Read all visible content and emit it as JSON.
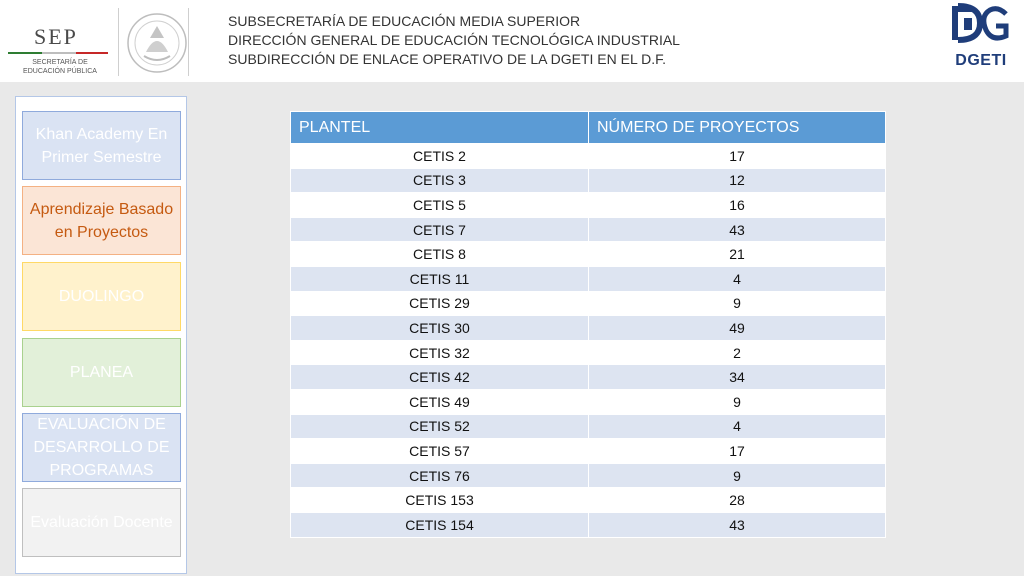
{
  "header": {
    "sep_logo": {
      "name": "SEP",
      "subtitle_line1": "SECRETARÍA DE",
      "subtitle_line2": "EDUCACIÓN PÚBLICA"
    },
    "lines": [
      "SUBSECRETARÍA DE EDUCACIÓN MEDIA SUPERIOR",
      "DIRECCIÓN GENERAL DE EDUCACIÓN TECNOLÓGICA INDUSTRIAL",
      "SUBDIRECCIÓN DE ENLACE OPERATIVO DE LA DGETI EN EL D.F."
    ],
    "dgeti_logo": {
      "text": "DGETI"
    }
  },
  "sidebar": {
    "items": [
      {
        "label": "Khan Academy En Primer Semestre"
      },
      {
        "label": "Aprendizaje Basado en Proyectos"
      },
      {
        "label": "DUOLINGO"
      },
      {
        "label": "PLANEA"
      },
      {
        "label": "EVALUACIÓN DE DESARROLLO DE PROGRAMAS"
      },
      {
        "label": "Evaluación Docente"
      }
    ]
  },
  "table": {
    "headers": [
      "PLANTEL",
      "NÚMERO DE PROYECTOS"
    ],
    "rows": [
      [
        "CETIS 2",
        "17"
      ],
      [
        "CETIS 3",
        "12"
      ],
      [
        "CETIS 5",
        "16"
      ],
      [
        "CETIS 7",
        "43"
      ],
      [
        "CETIS 8",
        "21"
      ],
      [
        "CETIS 11",
        "4"
      ],
      [
        "CETIS 29",
        "9"
      ],
      [
        "CETIS 30",
        "49"
      ],
      [
        "CETIS 32",
        "2"
      ],
      [
        "CETIS 42",
        "34"
      ],
      [
        "CETIS 49",
        "9"
      ],
      [
        "CETIS 52",
        "4"
      ],
      [
        "CETIS 57",
        "17"
      ],
      [
        "CETIS 76",
        "9"
      ],
      [
        "CETIS 153",
        "28"
      ],
      [
        "CETIS 154",
        "43"
      ]
    ]
  },
  "colors": {
    "table_header": "#5b9bd5",
    "table_band": "#dde4f1"
  }
}
